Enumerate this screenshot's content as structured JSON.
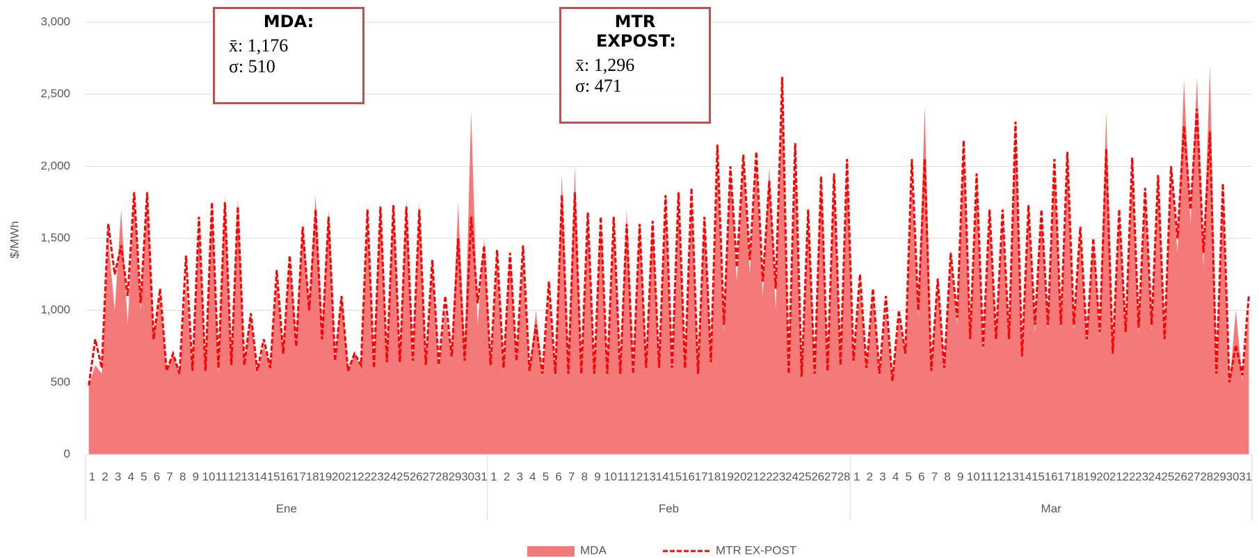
{
  "chart_data": {
    "type": "area-line",
    "ylabel": "$/MWh",
    "ylim": [
      0,
      3000
    ],
    "yticks": [
      0,
      500,
      {
        "value": 1000,
        "label": "1,000"
      },
      {
        "value": 1500,
        "label": "1,500"
      },
      {
        "value": 2000,
        "label": "2,000"
      },
      {
        "value": 2500,
        "label": "2,500"
      },
      {
        "value": 3000,
        "label": "3,000"
      }
    ],
    "grid": true,
    "months": [
      "Ene",
      "Feb",
      "Mar"
    ],
    "categories": [
      "1",
      null,
      "2",
      null,
      "3",
      null,
      "4",
      null,
      "5",
      null,
      "6",
      null,
      "7",
      null,
      "8",
      null,
      "9",
      null,
      "10",
      null,
      "11",
      null,
      "12",
      null,
      "13",
      null,
      "14",
      null,
      "15",
      null,
      "16",
      null,
      "17",
      null,
      "18",
      null,
      "19",
      null,
      "20",
      null,
      "21",
      null,
      "22",
      null,
      "23",
      null,
      "24",
      null,
      "25",
      null,
      "26",
      null,
      "27",
      null,
      "28",
      null,
      "29",
      null,
      "30",
      null,
      "31",
      null,
      "1",
      null,
      "2",
      null,
      "3",
      null,
      "4",
      null,
      "5",
      null,
      "6",
      null,
      "7",
      null,
      "8",
      null,
      "9",
      null,
      "10",
      null,
      "11",
      null,
      "12",
      null,
      "13",
      null,
      "14",
      null,
      "15",
      null,
      "16",
      null,
      "17",
      null,
      "18",
      null,
      "19",
      null,
      "20",
      null,
      "21",
      null,
      "22",
      null,
      "23",
      null,
      "24",
      null,
      "25",
      null,
      "26",
      null,
      "27",
      null,
      "28",
      null,
      "1",
      null,
      "2",
      null,
      "3",
      null,
      "4",
      null,
      "5",
      null,
      "6",
      null,
      "7",
      null,
      "8",
      null,
      "9",
      null,
      "10",
      null,
      "11",
      null,
      "12",
      null,
      "13",
      null,
      "14",
      null,
      "15",
      null,
      "16",
      null,
      "17",
      null,
      "18",
      null,
      "19",
      null,
      "20",
      null,
      "21",
      null,
      "22",
      null,
      "23",
      null,
      "24",
      null,
      "25",
      null,
      "26",
      null,
      "27",
      null,
      "28",
      null,
      "29",
      null,
      "30",
      null,
      "31",
      null
    ],
    "series": [
      {
        "name": "MDA",
        "kind": "area",
        "color": "#f47a7a",
        "values": [
          480,
          620,
          560,
          1500,
          1000,
          1700,
          900,
          1800,
          1000,
          1800,
          800,
          1100,
          580,
          700,
          550,
          1200,
          560,
          1600,
          560,
          1750,
          560,
          1800,
          580,
          1780,
          600,
          950,
          560,
          750,
          600,
          1200,
          700,
          1350,
          760,
          1600,
          1000,
          1800,
          820,
          1700,
          640,
          1100,
          580,
          700,
          600,
          1650,
          600,
          1750,
          620,
          1750,
          620,
          1780,
          620,
          1750,
          600,
          1300,
          600,
          1000,
          660,
          1750,
          700,
          2380,
          900,
          1500,
          600,
          1350,
          580,
          1400,
          620,
          1350,
          560,
          1000,
          540,
          1100,
          540,
          1950,
          540,
          2000,
          540,
          1650,
          540,
          1650,
          540,
          1600,
          540,
          1700,
          540,
          1600,
          580,
          1650,
          580,
          1750,
          580,
          1750,
          580,
          1800,
          540,
          1650,
          620,
          2000,
          850,
          2000,
          1200,
          2050,
          1250,
          2050,
          1100,
          2000,
          1000,
          2550,
          540,
          2050,
          520,
          1650,
          540,
          1950,
          560,
          1900,
          600,
          2000,
          620,
          1150,
          580,
          1100,
          540,
          1000,
          500,
          950,
          680,
          1900,
          950,
          2420,
          560,
          1200,
          580,
          1350,
          900,
          2150,
          780,
          1900,
          720,
          1650,
          780,
          1650,
          780,
          2300,
          660,
          1700,
          850,
          1680,
          860,
          2000,
          860,
          2050,
          860,
          1550,
          780,
          1500,
          820,
          2380,
          680,
          1650,
          820,
          2000,
          850,
          1800,
          860,
          1900,
          780,
          2000,
          1400,
          2600,
          1600,
          2620,
          1300,
          2700,
          540,
          1800,
          480,
          1000,
          520,
          1000
        ]
      },
      {
        "name": "MTR EX-POST",
        "kind": "line",
        "color": "#ff0000",
        "values": [
          480,
          800,
          600,
          1600,
          1250,
          1450,
          1100,
          1820,
          1050,
          1820,
          800,
          1150,
          580,
          700,
          560,
          1380,
          580,
          1650,
          580,
          1750,
          600,
          1750,
          620,
          1720,
          620,
          980,
          580,
          800,
          600,
          1280,
          700,
          1380,
          750,
          1580,
          1000,
          1700,
          800,
          1650,
          650,
          1100,
          580,
          700,
          620,
          1700,
          600,
          1720,
          640,
          1730,
          640,
          1720,
          650,
          1700,
          620,
          1350,
          620,
          1100,
          680,
          1500,
          650,
          1650,
          1050,
          1450,
          620,
          1420,
          600,
          1400,
          650,
          1450,
          580,
          900,
          560,
          1200,
          560,
          1800,
          560,
          1820,
          560,
          1680,
          560,
          1650,
          560,
          1650,
          560,
          1600,
          560,
          1600,
          600,
          1620,
          600,
          1800,
          600,
          1820,
          600,
          1850,
          560,
          1650,
          640,
          2150,
          900,
          2000,
          1300,
          2080,
          1350,
          2100,
          1200,
          1900,
          1150,
          2620,
          560,
          2160,
          540,
          1700,
          560,
          1930,
          580,
          1950,
          620,
          2050,
          650,
          1250,
          600,
          1150,
          560,
          1100,
          510,
          1000,
          700,
          2050,
          1000,
          2050,
          580,
          1220,
          600,
          1400,
          950,
          2180,
          800,
          1950,
          750,
          1700,
          800,
          1700,
          800,
          2310,
          680,
          1730,
          900,
          1700,
          900,
          2050,
          900,
          2100,
          900,
          1580,
          800,
          1500,
          850,
          2120,
          700,
          1700,
          850,
          2060,
          880,
          1850,
          900,
          1940,
          800,
          2000,
          1500,
          2280,
          1700,
          2400,
          1400,
          2240,
          560,
          1880,
          500,
          760,
          550,
          1100
        ]
      }
    ],
    "annotations": [
      {
        "title": "MDA:",
        "lines": [
          "x̄: 1,176",
          "σ: 510"
        ]
      },
      {
        "title": "MTR EXPOST:",
        "lines": [
          "x̄: 1,296",
          "σ: 471"
        ]
      }
    ]
  }
}
